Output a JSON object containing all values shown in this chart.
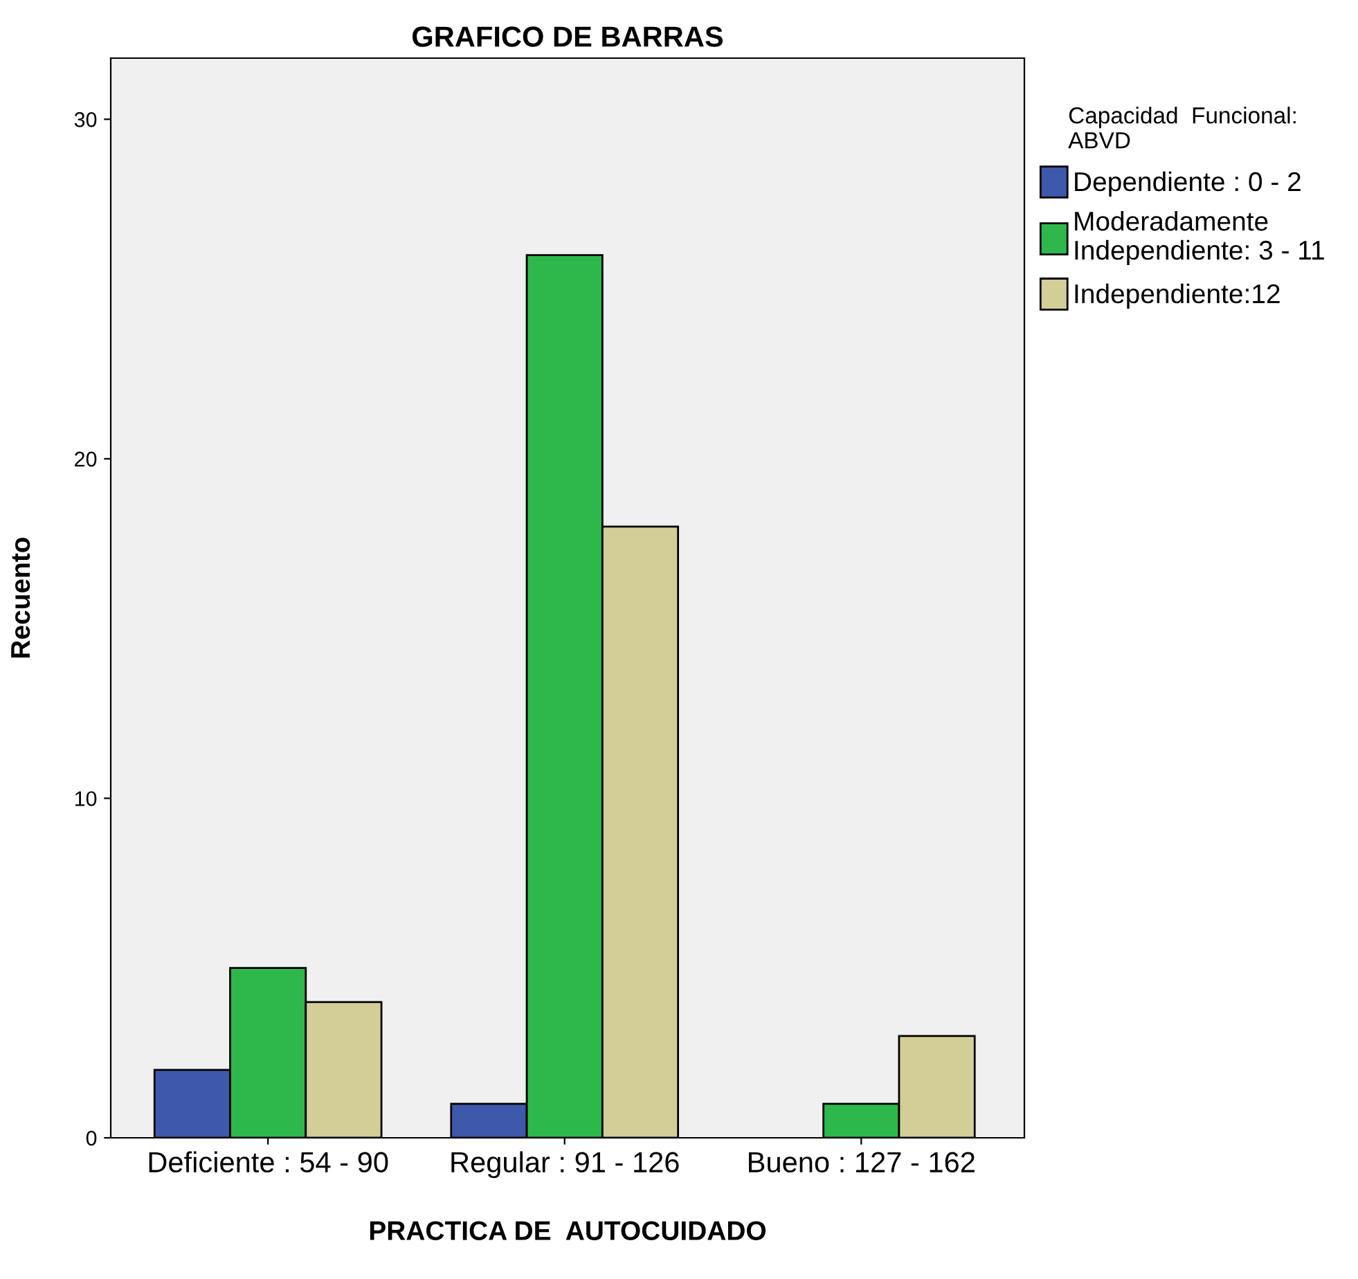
{
  "chart_data": {
    "type": "bar",
    "title": "GRAFICO DE BARRAS",
    "xlabel": "PRACTICA DE  AUTOCUIDADO",
    "ylabel": "Recuento",
    "legend_title": "Capacidad  Funcional:\nABVD",
    "categories": [
      "Deficiente : 54 - 90",
      "Regular : 91 - 126",
      "Bueno : 127 - 162"
    ],
    "series": [
      {
        "name": "Dependiente : 0 - 2",
        "color": "#3e58ac",
        "values": [
          2,
          1,
          null
        ]
      },
      {
        "name": "Moderadamente\nIndependiente: 3 - 11",
        "color": "#2eb84c",
        "values": [
          5,
          26,
          1
        ]
      },
      {
        "name": "Independiente:12",
        "color": "#d3ce97",
        "values": [
          4,
          18,
          3
        ]
      }
    ],
    "ylim": [
      0,
      31.8
    ],
    "yticks": [
      0,
      10,
      20,
      30
    ],
    "grid": false,
    "legend": "top right"
  }
}
